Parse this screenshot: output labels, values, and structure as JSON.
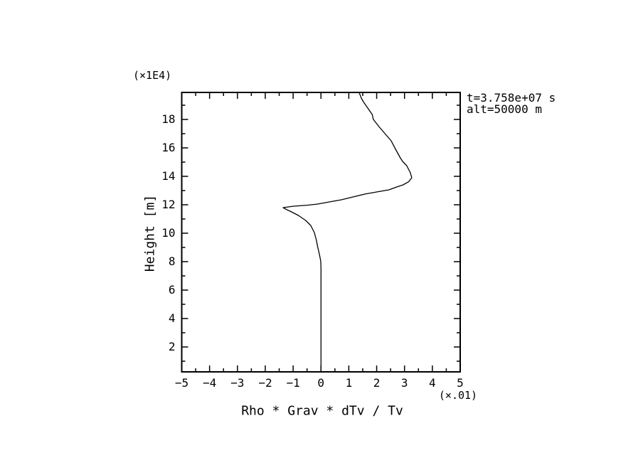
{
  "annotations": {
    "time": "t=3.758e+07 s",
    "altitude": "alt=50000 m"
  },
  "chart_data": {
    "type": "line",
    "title": "",
    "xlabel": "Rho * Grav * dTv / Tv",
    "ylabel": "Height [m]",
    "x_scale_factor_label": "(×.01)",
    "y_scale_factor_label": "(×1E4)",
    "xlim": [
      -5,
      5
    ],
    "ylim": [
      0.25,
      19.9
    ],
    "x_major_ticks": [
      -5,
      -4,
      -3,
      -2,
      -1,
      0,
      1,
      2,
      3,
      4,
      5
    ],
    "x_minor_ticks": [
      -4.5,
      -3.5,
      -2.5,
      -1.5,
      -0.5,
      0.5,
      1.5,
      2.5,
      3.5,
      4.5
    ],
    "y_major_ticks": [
      2,
      4,
      6,
      8,
      10,
      12,
      14,
      16,
      18
    ],
    "y_minor_ticks": [
      1,
      3,
      5,
      7,
      9,
      11,
      13,
      15,
      17,
      19
    ],
    "grid": false,
    "legend": false,
    "line_color": "#000000",
    "frame_color": "#000000",
    "background": "#ffffff",
    "series": [
      {
        "name": "rho-grav-dtv-over-tv-profile",
        "points": [
          [
            0.0,
            0.25
          ],
          [
            0.0,
            7.55
          ],
          [
            -0.01,
            8.05
          ],
          [
            -0.06,
            8.55
          ],
          [
            -0.12,
            9.05
          ],
          [
            -0.17,
            9.55
          ],
          [
            -0.24,
            10.05
          ],
          [
            -0.37,
            10.55
          ],
          [
            -0.55,
            10.9
          ],
          [
            -0.81,
            11.25
          ],
          [
            -1.06,
            11.5
          ],
          [
            -1.25,
            11.68
          ],
          [
            -1.36,
            11.8
          ],
          [
            -0.98,
            11.9
          ],
          [
            -0.5,
            11.97
          ],
          [
            -0.12,
            12.05
          ],
          [
            0.3,
            12.2
          ],
          [
            0.73,
            12.35
          ],
          [
            1.15,
            12.55
          ],
          [
            1.57,
            12.75
          ],
          [
            2.0,
            12.9
          ],
          [
            2.44,
            13.05
          ],
          [
            2.72,
            13.25
          ],
          [
            2.95,
            13.4
          ],
          [
            3.15,
            13.62
          ],
          [
            3.26,
            13.9
          ],
          [
            3.21,
            14.25
          ],
          [
            3.08,
            14.75
          ],
          [
            2.93,
            15.05
          ],
          [
            2.85,
            15.3
          ],
          [
            2.68,
            15.9
          ],
          [
            2.52,
            16.5
          ],
          [
            2.3,
            17.0
          ],
          [
            2.08,
            17.5
          ],
          [
            1.88,
            18.0
          ],
          [
            1.84,
            18.35
          ],
          [
            1.68,
            18.8
          ],
          [
            1.52,
            19.25
          ],
          [
            1.45,
            19.5
          ],
          [
            1.37,
            19.9
          ]
        ]
      }
    ]
  }
}
